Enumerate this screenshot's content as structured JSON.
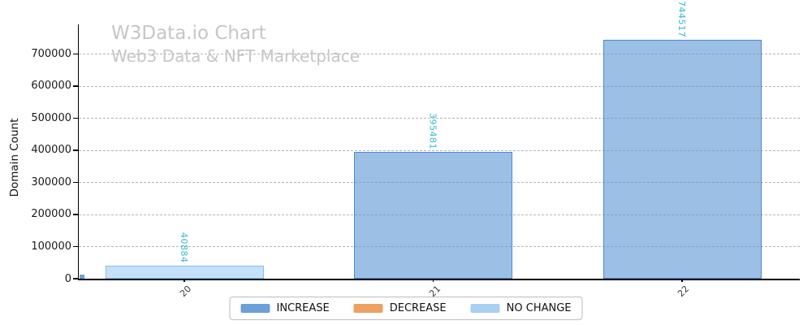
{
  "chart_data": {
    "type": "bar",
    "title": "W3Data.io Chart",
    "subtitle": "Web3 Data & NFT Marketplace",
    "ylabel": "Domain Count",
    "xlabel": "",
    "categories": [
      "20",
      "21",
      "22"
    ],
    "values": [
      40884,
      395481,
      744517
    ],
    "value_labels": [
      "40884",
      "395481",
      "744517"
    ],
    "bar_classes": [
      "no-change",
      "increase",
      "increase"
    ],
    "ylim": [
      0,
      792000
    ],
    "yticks": [
      0,
      100000,
      200000,
      300000,
      400000,
      500000,
      600000,
      700000
    ],
    "grid": "horizontal dashed",
    "legend_position": "bottom center",
    "legend": [
      {
        "label": "INCREASE",
        "color": "#69a0d7"
      },
      {
        "label": "DECREASE",
        "color": "#eea160"
      },
      {
        "label": "NO CHANGE",
        "color": "#a9cff2"
      }
    ],
    "colors": {
      "increase_fill": "#9fc1e6",
      "increase_edge": "#6d9dd9",
      "no_change_fill": "#c5e1f9",
      "no_change_edge": "#a5cff2",
      "value_label": "#38b9cd",
      "title_text": "#c6c6c6",
      "gridline": "#b5b5b5",
      "axis": "#000000"
    }
  }
}
